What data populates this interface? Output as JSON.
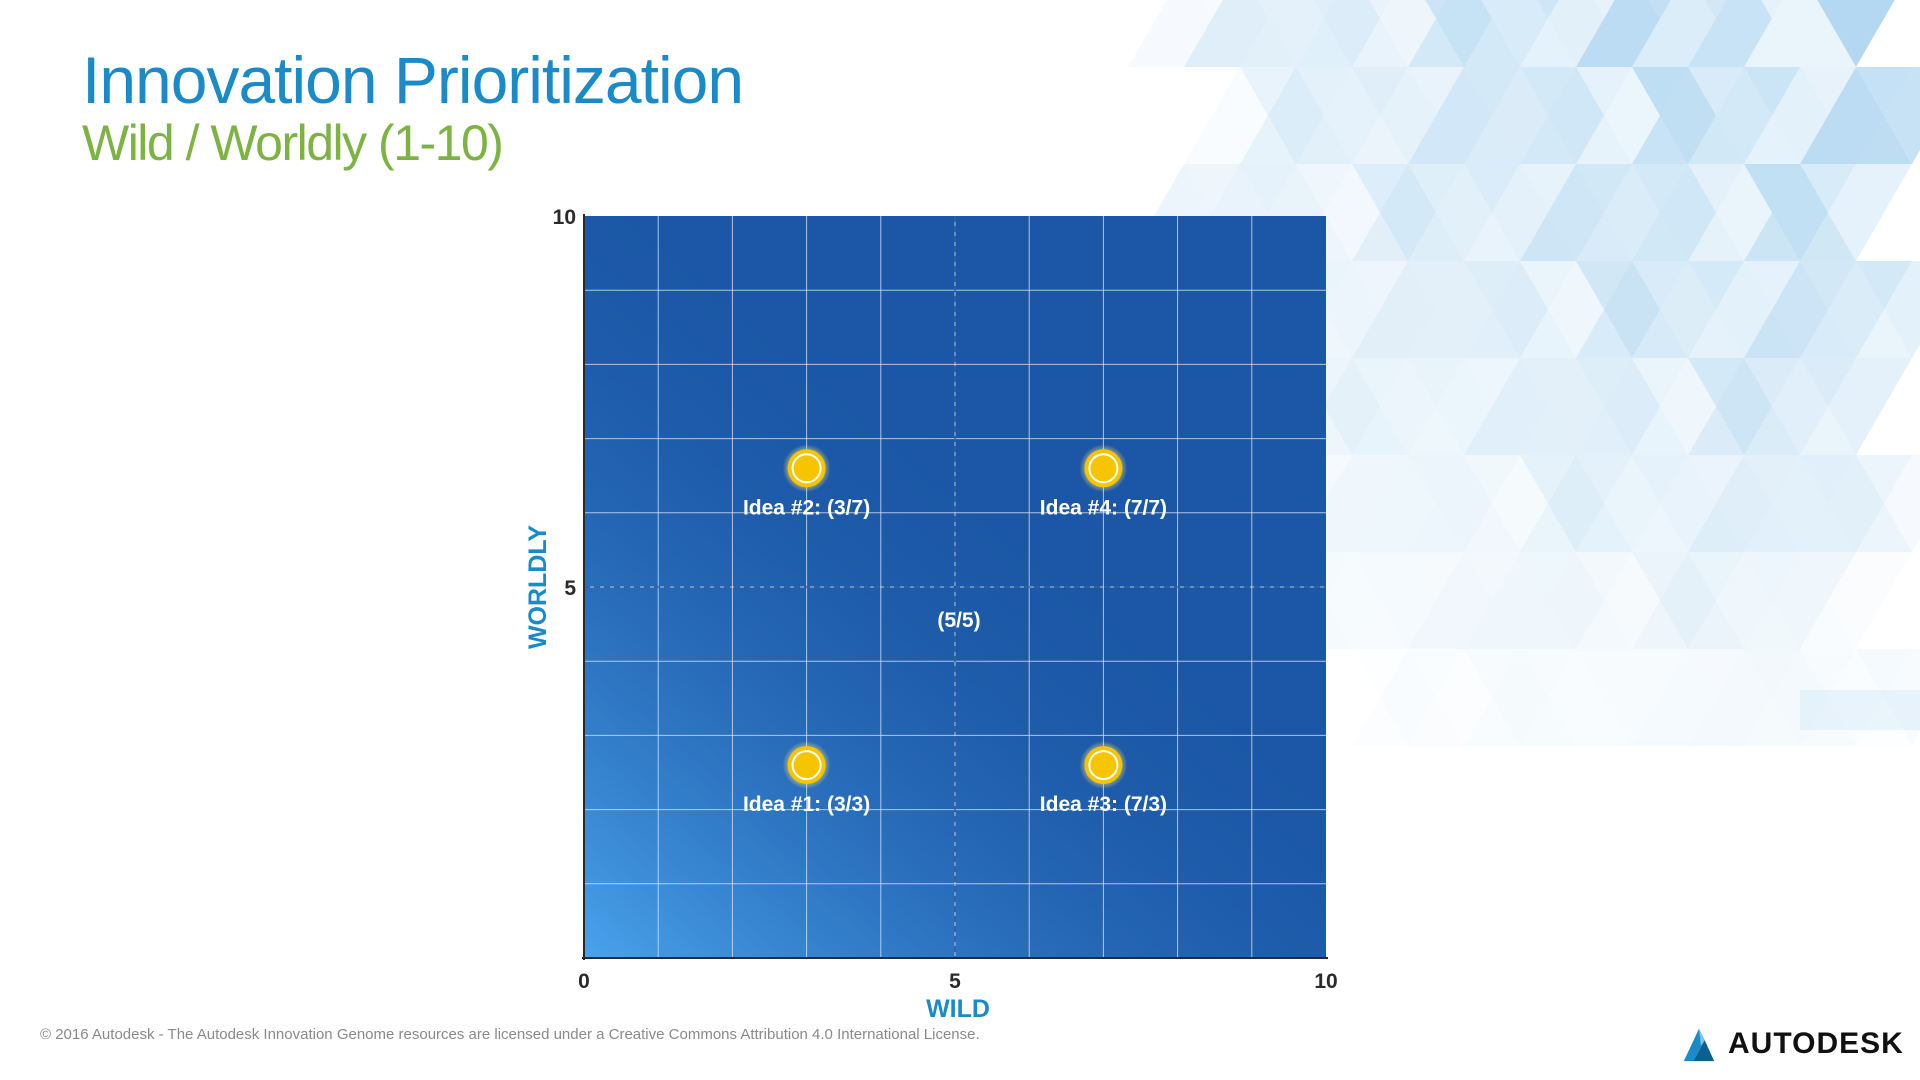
{
  "slide": {
    "title": "Innovation Prioritization",
    "subtitle": "Wild / Worldly (1-10)",
    "footer": "© 2016 Autodesk - The Autodesk Innovation Genome resources are licensed under a Creative Commons Attribution 4.0 International License.",
    "logo_text": "AUTODESK"
  },
  "chart_data": {
    "type": "scatter",
    "title": "",
    "xlabel": "WILD",
    "ylabel": "WORLDLY",
    "xlim": [
      0,
      10
    ],
    "ylim": [
      0,
      10
    ],
    "x_ticks": [
      "0",
      "5",
      "10"
    ],
    "y_ticks": [
      "5",
      "10"
    ],
    "grid": true,
    "points": [
      {
        "label": "Idea #2: (3/7)",
        "x": 3,
        "y": 6.6
      },
      {
        "label": "Idea #4: (7/7)",
        "x": 7,
        "y": 6.6
      },
      {
        "label": "Idea #1: (3/3)",
        "x": 3,
        "y": 2.6
      },
      {
        "label": "Idea #3: (7/3)",
        "x": 7,
        "y": 2.6
      }
    ],
    "center_label": {
      "text": "(5/5)",
      "x": 5,
      "y": 5
    }
  },
  "colors": {
    "title": "#1a8bc8",
    "subtitle": "#7cb342",
    "plot_background": "#1b57a6",
    "grid": "#dfe8f5",
    "point_fill": "#f7c500",
    "axis_label": "#1a8bc8"
  }
}
